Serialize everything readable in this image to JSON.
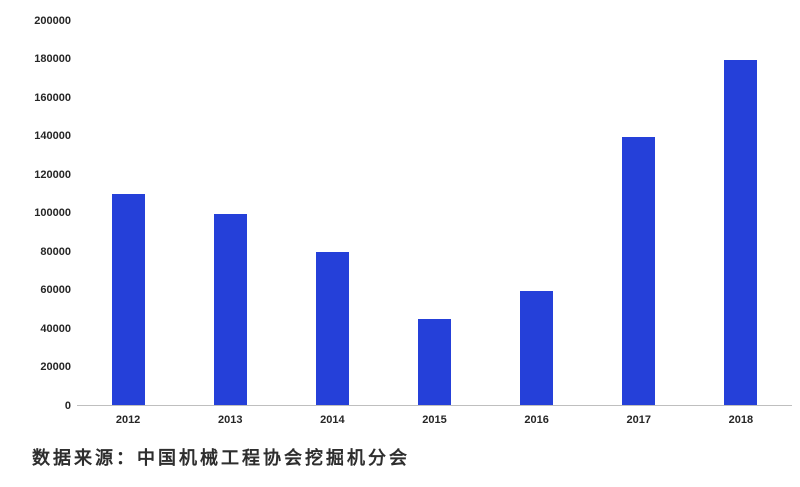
{
  "caption": {
    "text": "数据来源：中国机械工程协会挖掘机分会"
  },
  "colors": {
    "bar": "#2540d9",
    "axis_line": "#bfbfbf",
    "tick_label": "#262626",
    "background": "#ffffff"
  },
  "chart_data": {
    "type": "bar",
    "categories": [
      "2012",
      "2013",
      "2014",
      "2015",
      "2016",
      "2017",
      "2018"
    ],
    "values": [
      110000,
      100000,
      80000,
      45000,
      60000,
      140000,
      180000
    ],
    "title": "",
    "xlabel": "",
    "ylabel": "",
    "ylim": [
      0,
      200000
    ],
    "y_ticks": [
      0,
      20000,
      40000,
      60000,
      80000,
      100000,
      120000,
      140000,
      160000,
      180000,
      200000
    ],
    "grid": false,
    "legend": false,
    "bar_color": "#2540d9",
    "source_note": "数据来源：中国机械工程协会挖掘机分会"
  }
}
